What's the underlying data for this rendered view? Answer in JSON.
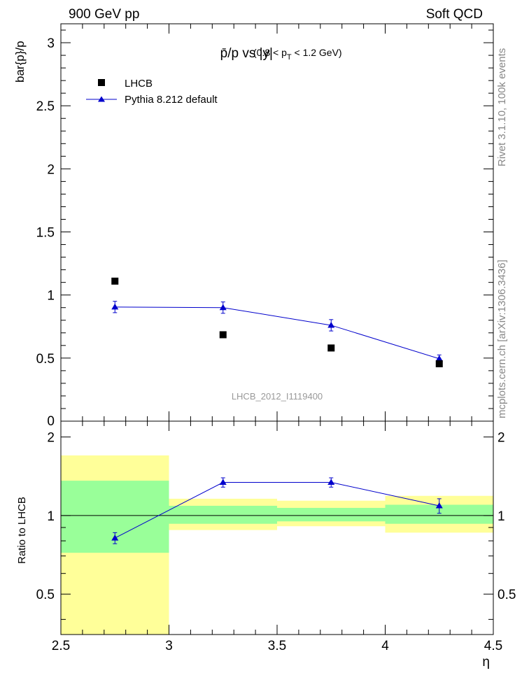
{
  "header": {
    "left": "900 GeV pp",
    "right": "Soft QCD"
  },
  "side_labels": {
    "rivet": "Rivet 3.1.10,  100k events",
    "mcplots": "mcplots.cern.ch [arXiv:1306.3436]"
  },
  "watermark": "LHCB_2012_I1119400",
  "colors": {
    "data": "#000000",
    "mc": "#0000cc",
    "band_inner": "#99ff99",
    "band_outer": "#ffff99"
  },
  "chart_data": [
    {
      "type": "scatter",
      "title_main": "p̄/p vs |y|",
      "title_sub_pre": "(0.8 < p",
      "title_sub_sub": "T",
      "title_sub_post": " < 1.2 GeV)",
      "ylabel": "bar{p}/p",
      "xlim": [
        2.5,
        4.5
      ],
      "ylim": [
        0,
        3.15
      ],
      "yticks": [
        {
          "v": 0.5,
          "label": "0.5"
        },
        {
          "v": 1,
          "label": "1"
        },
        {
          "v": 1.5,
          "label": "1.5"
        },
        {
          "v": 2,
          "label": "2"
        },
        {
          "v": 2.5,
          "label": "2.5"
        },
        {
          "v": 3,
          "label": "3"
        }
      ],
      "y_zero_label": "0",
      "legend_position": "top-left",
      "series": [
        {
          "name": "LHCB",
          "marker": "square",
          "x": [
            2.75,
            3.25,
            3.75,
            4.25
          ],
          "y": [
            1.11,
            0.685,
            0.58,
            0.455
          ]
        },
        {
          "name": "Pythia 8.212 default",
          "marker": "triangle",
          "x": [
            2.75,
            3.25,
            3.75,
            4.25
          ],
          "y": [
            0.905,
            0.9,
            0.76,
            0.495
          ],
          "yerr": [
            0.045,
            0.045,
            0.045,
            0.03
          ]
        }
      ]
    },
    {
      "type": "line",
      "ylabel": "Ratio to LHCB",
      "xlabel": "η",
      "xlim": [
        2.5,
        4.5
      ],
      "ylim": [
        0.35,
        2.3
      ],
      "xticks": [
        {
          "v": 2.5,
          "label": "2.5"
        },
        {
          "v": 3,
          "label": "3"
        },
        {
          "v": 3.5,
          "label": "3.5"
        },
        {
          "v": 4,
          "label": "4"
        },
        {
          "v": 4.5,
          "label": "4.5"
        }
      ],
      "yticks": [
        {
          "v": 0.5,
          "label": "0.5"
        },
        {
          "v": 1,
          "label": "1"
        },
        {
          "v": 2,
          "label": "2"
        }
      ],
      "reference_line": 1,
      "bands": [
        {
          "x0": 2.5,
          "x1": 3.0,
          "inner": [
            0.72,
            1.36
          ],
          "outer": [
            0.35,
            1.7
          ]
        },
        {
          "x0": 3.0,
          "x1": 3.5,
          "inner": [
            0.93,
            1.09
          ],
          "outer": [
            0.88,
            1.16
          ]
        },
        {
          "x0": 3.5,
          "x1": 4.0,
          "inner": [
            0.95,
            1.07
          ],
          "outer": [
            0.91,
            1.14
          ]
        },
        {
          "x0": 4.0,
          "x1": 4.5,
          "inner": [
            0.93,
            1.1
          ],
          "outer": [
            0.86,
            1.19
          ]
        }
      ],
      "series": [
        {
          "name": "Pythia 8.212 default",
          "x": [
            2.75,
            3.25,
            3.75,
            4.25
          ],
          "y": [
            0.82,
            1.34,
            1.34,
            1.09
          ],
          "yerr": [
            0.04,
            0.055,
            0.055,
            0.07
          ]
        }
      ]
    }
  ]
}
